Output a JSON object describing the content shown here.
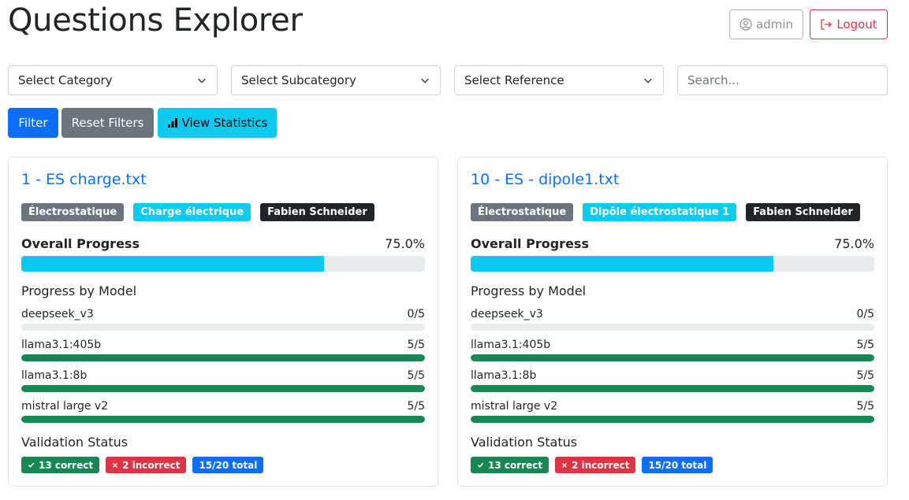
{
  "header": {
    "title": "Questions Explorer",
    "admin_label": "admin",
    "logout_label": "Logout"
  },
  "filters": {
    "category_placeholder": "Select Category",
    "subcategory_placeholder": "Select Subcategory",
    "reference_placeholder": "Select Reference",
    "search_placeholder": "Search...",
    "filter_label": "Filter",
    "reset_label": "Reset Filters",
    "stats_label": "View Statistics"
  },
  "labels": {
    "overall_progress": "Overall Progress",
    "progress_by_model": "Progress by Model",
    "validation_status": "Validation Status"
  },
  "colors": {
    "primary": "#0d6efd",
    "info": "#0dcaf0",
    "success": "#198754",
    "danger": "#dc3545",
    "secondary": "#6c757d",
    "dark": "#212529"
  },
  "cards": [
    {
      "title": "1 - ES charge.txt",
      "category": "Électrostatique",
      "subcategory": "Charge électrique",
      "author": "Fabien Schneider",
      "overall_progress_text": "75.0%",
      "overall_progress": 75.0,
      "models": [
        {
          "name": "deepseek_v3",
          "score": "0/5",
          "done": 0,
          "total": 5
        },
        {
          "name": "llama3.1:405b",
          "score": "5/5",
          "done": 5,
          "total": 5
        },
        {
          "name": "llama3.1:8b",
          "score": "5/5",
          "done": 5,
          "total": 5
        },
        {
          "name": "mistral large v2",
          "score": "5/5",
          "done": 5,
          "total": 5
        }
      ],
      "correct": "13 correct",
      "incorrect": "2 incorrect",
      "total": "15/20 total"
    },
    {
      "title": "10 - ES - dipole1.txt",
      "category": "Électrostatique",
      "subcategory": "Dipôle électrostatique 1",
      "author": "Fabien Schneider",
      "overall_progress_text": "75.0%",
      "overall_progress": 75.0,
      "models": [
        {
          "name": "deepseek_v3",
          "score": "0/5",
          "done": 0,
          "total": 5
        },
        {
          "name": "llama3.1:405b",
          "score": "5/5",
          "done": 5,
          "total": 5
        },
        {
          "name": "llama3.1:8b",
          "score": "5/5",
          "done": 5,
          "total": 5
        },
        {
          "name": "mistral large v2",
          "score": "5/5",
          "done": 5,
          "total": 5
        }
      ],
      "correct": "13 correct",
      "incorrect": "2 incorrect",
      "total": "15/20 total"
    }
  ]
}
